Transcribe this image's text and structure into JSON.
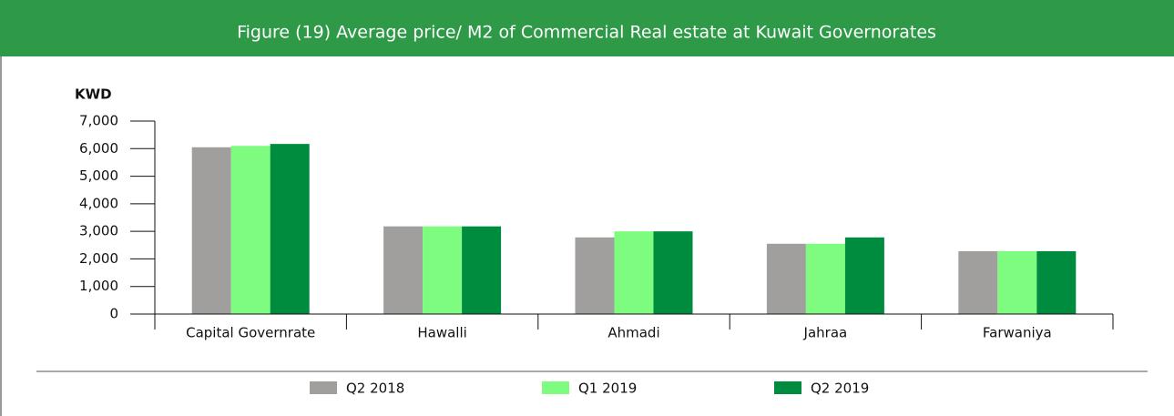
{
  "chart_data": {
    "type": "bar",
    "title": "Figure (19) Average price/ M2 of Commercial Real estate at Kuwait Governorates",
    "y_label": "KWD",
    "categories": [
      "Capital Governrate",
      "Hawalli",
      "Ahmadi",
      "Jahraa",
      "Farwaniya"
    ],
    "series": [
      {
        "name": "Q2 2018",
        "color": "#a09f9d",
        "values": [
          6050,
          3180,
          2780,
          2550,
          2280
        ]
      },
      {
        "name": "Q1 2019",
        "color": "#7dfc7f",
        "values": [
          6100,
          3180,
          3000,
          2550,
          2280
        ]
      },
      {
        "name": "Q2 2019",
        "color": "#008c3f",
        "values": [
          6170,
          3180,
          3000,
          2780,
          2280
        ]
      }
    ],
    "ylim": [
      0,
      7000
    ],
    "yticks": [
      0,
      {
        "value": 1000,
        "label": "1,000"
      },
      {
        "value": 2000,
        "label": "2,000"
      },
      {
        "value": 3000,
        "label": "3,000"
      },
      {
        "value": 4000,
        "label": "4,000"
      },
      {
        "value": 5000,
        "label": "5,000"
      },
      {
        "value": 6000,
        "label": "6,000"
      },
      {
        "value": 7000,
        "label": "7,000"
      }
    ],
    "legend": "bottom"
  }
}
